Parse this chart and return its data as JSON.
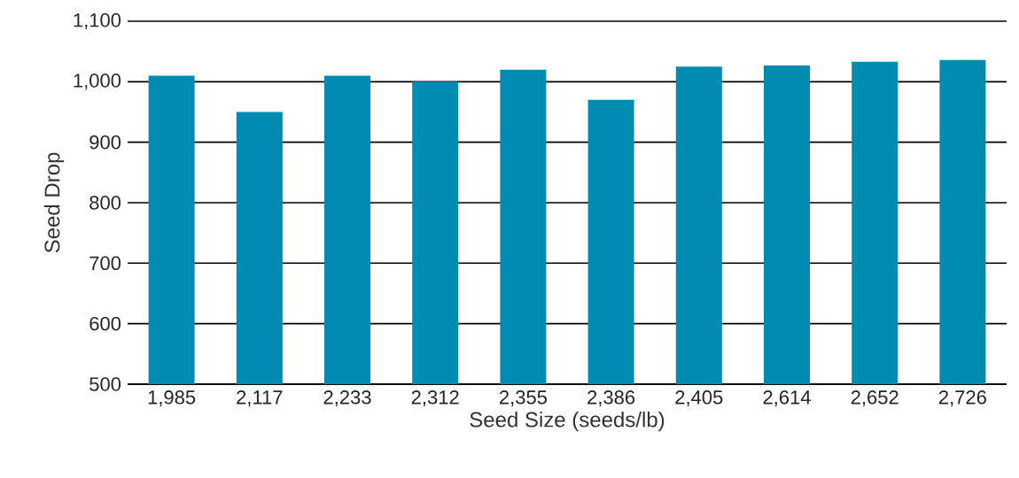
{
  "chart_data": {
    "type": "bar",
    "xlabel": "Seed Size (seeds/lb)",
    "ylabel": "Seed Drop",
    "categories": [
      "1,985",
      "2,117",
      "2,233",
      "2,312",
      "2,355",
      "2,386",
      "2,405",
      "2,614",
      "2,652",
      "2,726"
    ],
    "values": [
      1010,
      950,
      1010,
      1000,
      1020,
      970,
      1025,
      1027,
      1033,
      1036
    ],
    "color": "#008bb0",
    "ylim": [
      500,
      1100
    ],
    "yticks": [
      {
        "value": 500,
        "label": "500"
      },
      {
        "value": 600,
        "label": "600"
      },
      {
        "value": 700,
        "label": "700"
      },
      {
        "value": 800,
        "label": "800"
      },
      {
        "value": 900,
        "label": "900"
      },
      {
        "value": 1000,
        "label": "1,000"
      },
      {
        "value": 1100,
        "label": "1,100"
      }
    ],
    "grid": "y"
  }
}
